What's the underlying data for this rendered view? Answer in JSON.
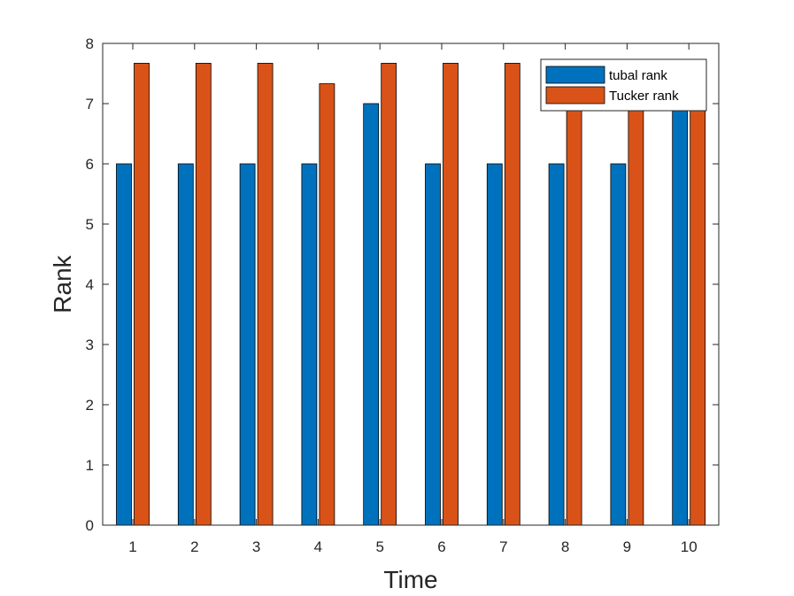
{
  "chart_data": {
    "type": "bar",
    "title": "",
    "xlabel": "Time",
    "ylabel": "Rank",
    "categories": [
      "1",
      "2",
      "3",
      "4",
      "5",
      "6",
      "7",
      "8",
      "9",
      "10"
    ],
    "series": [
      {
        "name": "tubal rank",
        "color": "#0072BD",
        "values": [
          6,
          6,
          6,
          6,
          7,
          6,
          6,
          6,
          6,
          7
        ]
      },
      {
        "name": "Tucker rank",
        "color": "#D95319",
        "values": [
          7.67,
          7.67,
          7.67,
          7.33,
          7.67,
          7.67,
          7.67,
          7.33,
          7.33,
          7.33
        ]
      }
    ],
    "ylim": [
      0,
      8
    ],
    "yticks": [
      0,
      1,
      2,
      3,
      4,
      5,
      6,
      7,
      8
    ],
    "grid": false,
    "legend_position": "top-right"
  }
}
